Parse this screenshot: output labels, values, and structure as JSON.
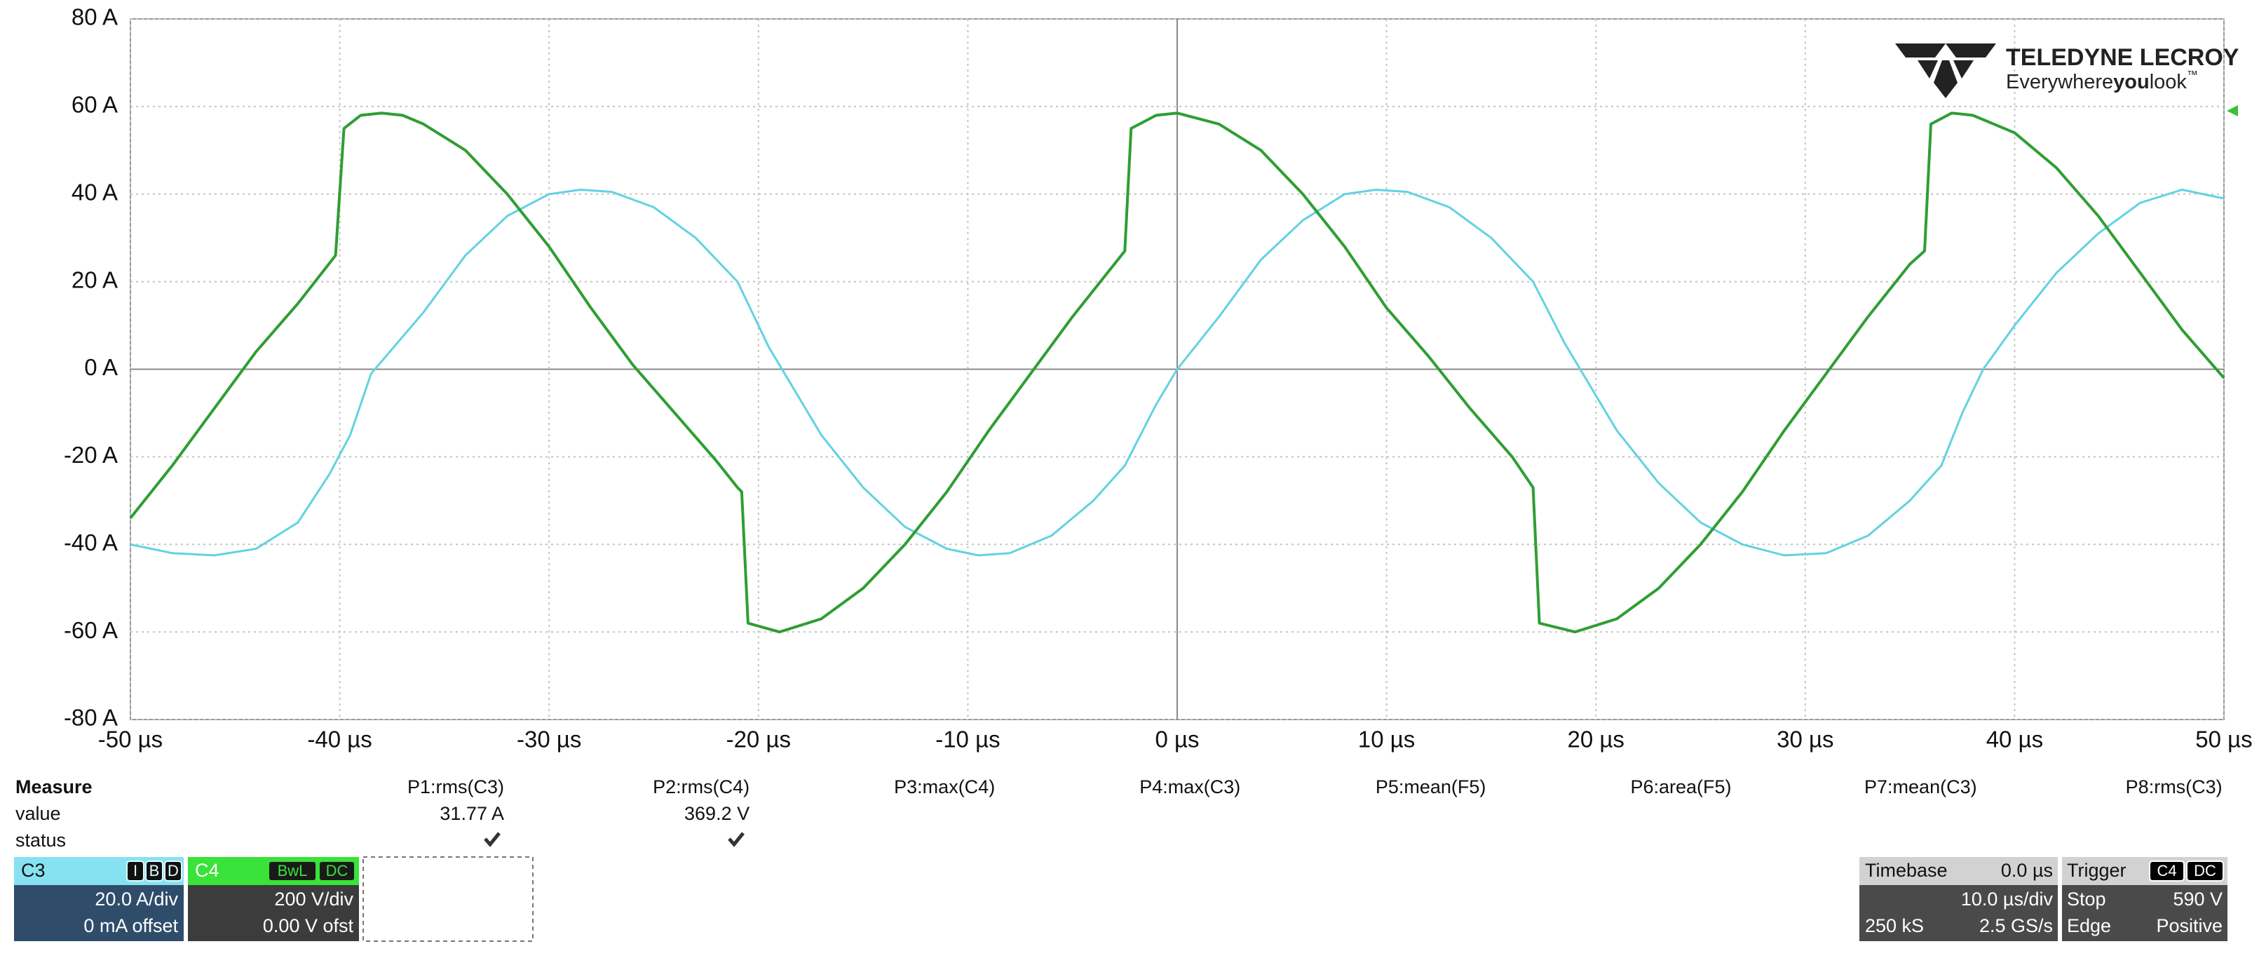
{
  "chart_data": {
    "type": "line",
    "xlim": [
      -50,
      50
    ],
    "ylim": [
      -80,
      80
    ],
    "grid": true,
    "xticks": [
      {
        "value": -50,
        "label": "-50 µs"
      },
      {
        "value": -40,
        "label": "-40 µs"
      },
      {
        "value": -30,
        "label": "-30 µs"
      },
      {
        "value": -20,
        "label": "-20 µs"
      },
      {
        "value": -10,
        "label": "-10 µs"
      },
      {
        "value": 0,
        "label": "0 µs"
      },
      {
        "value": 10,
        "label": "10 µs"
      },
      {
        "value": 20,
        "label": "20 µs"
      },
      {
        "value": 30,
        "label": "30 µs"
      },
      {
        "value": 40,
        "label": "40 µs"
      },
      {
        "value": 50,
        "label": "50 µs"
      }
    ],
    "yticks": [
      {
        "value": 80,
        "label": "80 A"
      },
      {
        "value": 60,
        "label": "60 A"
      },
      {
        "value": 40,
        "label": "40 A"
      },
      {
        "value": 20,
        "label": "20 A"
      },
      {
        "value": 0,
        "label": "0 A"
      },
      {
        "value": -20,
        "label": "-20 A"
      },
      {
        "value": -40,
        "label": "-40 A"
      },
      {
        "value": -60,
        "label": "-60 A"
      },
      {
        "value": -80,
        "label": "-80 A"
      }
    ],
    "series": [
      {
        "name": "C3",
        "color": "#2f9e34",
        "x": [
          -50,
          -48,
          -46,
          -44,
          -42,
          -40.2,
          -39.8,
          -39,
          -38,
          -37,
          -36,
          -34,
          -32,
          -30,
          -28,
          -26,
          -24,
          -22,
          -21,
          -20.8,
          -20.5,
          -19,
          -17,
          -15,
          -13,
          -11,
          -9,
          -7,
          -5,
          -3,
          -2.5,
          -2.2,
          -1,
          0,
          2,
          4,
          6,
          8,
          10,
          12,
          14,
          16,
          17,
          17.3,
          19,
          21,
          23,
          25,
          27,
          29,
          31,
          33,
          35,
          35.7,
          36,
          37,
          38,
          40,
          42,
          44,
          46,
          48,
          50
        ],
        "values": [
          -34,
          -22,
          -9,
          4,
          15,
          26,
          55,
          58,
          58.5,
          58,
          56,
          50,
          40,
          28,
          14,
          1,
          -10,
          -21,
          -27,
          -28,
          -58,
          -60,
          -57,
          -50,
          -40,
          -28,
          -14,
          -1,
          12,
          24,
          27,
          55,
          58,
          58.5,
          56,
          50,
          40,
          28,
          14,
          3,
          -9,
          -20,
          -27,
          -58,
          -60,
          -57,
          -50,
          -40,
          -28,
          -14,
          -1,
          12,
          24,
          27,
          56,
          58.5,
          58,
          54,
          46,
          35,
          22,
          9,
          -2
        ]
      },
      {
        "name": "C4",
        "color": "#62d2e2",
        "x": [
          -50,
          -48,
          -46,
          -44,
          -42,
          -40.5,
          -39.5,
          -38.5,
          -36,
          -34,
          -32,
          -30,
          -28.5,
          -27,
          -25,
          -23,
          -21,
          -19.5,
          -18.5,
          -17,
          -15,
          -13,
          -11,
          -9.5,
          -8,
          -6,
          -4,
          -2.5,
          -1,
          0,
          2,
          4,
          6,
          8,
          9.5,
          11,
          13,
          15,
          17,
          18.5,
          19.5,
          21,
          23,
          25,
          27,
          29,
          31,
          33,
          35,
          36.5,
          37.5,
          38.5,
          40,
          42,
          44,
          46,
          48,
          50
        ],
        "values": [
          -40,
          -42,
          -42.5,
          -41,
          -35,
          -24,
          -15,
          -1,
          13,
          26,
          35,
          40,
          41,
          40.5,
          37,
          30,
          20,
          5,
          -3,
          -15,
          -27,
          -36,
          -41,
          -42.5,
          -42,
          -38,
          -30,
          -22,
          -8,
          0,
          12,
          25,
          34,
          40,
          41,
          40.5,
          37,
          30,
          20,
          6,
          -2,
          -14,
          -26,
          -35,
          -40,
          -42.5,
          -42,
          -38,
          -30,
          -22,
          -10,
          0,
          10,
          22,
          31,
          38,
          41,
          39
        ]
      }
    ]
  },
  "logo": {
    "brand": "TELEDYNE LECROY",
    "tagline": [
      "Everywhere",
      "you",
      "look"
    ],
    "tm": "™"
  },
  "measure": {
    "title": "Measure",
    "row_labels": [
      "value",
      "status"
    ],
    "params": [
      {
        "label": "P1:rms(C3)",
        "value": "31.77 A"
      },
      {
        "label": "P2:rms(C4)",
        "value": "369.2 V"
      },
      {
        "label": "P3:max(C4)"
      },
      {
        "label": "P4:max(C3)"
      },
      {
        "label": "P5:mean(F5)"
      },
      {
        "label": "P6:area(F5)"
      },
      {
        "label": "P7:mean(C3)"
      },
      {
        "label": "P8:rms(C3)"
      }
    ]
  },
  "channels": [
    {
      "badges": [
        "I",
        "B",
        "D"
      ],
      "scale": "20.0 A/div",
      "offset": "0 mA offset"
    },
    {
      "badges": [
        "BwL",
        "DC"
      ],
      "scale": "200 V/div",
      "offset": "0.00 V ofst"
    }
  ],
  "timebase": {
    "label": "Timebase",
    "delay": "0.0 µs",
    "scale": "10.0 µs/div",
    "samples": "250 kS",
    "rate": "2.5 GS/s"
  },
  "trigger": {
    "label": "Trigger",
    "badges": [
      "C4",
      "DC"
    ],
    "mode": "Stop",
    "level": "590 V",
    "type": "Edge",
    "slope": "Positive"
  }
}
